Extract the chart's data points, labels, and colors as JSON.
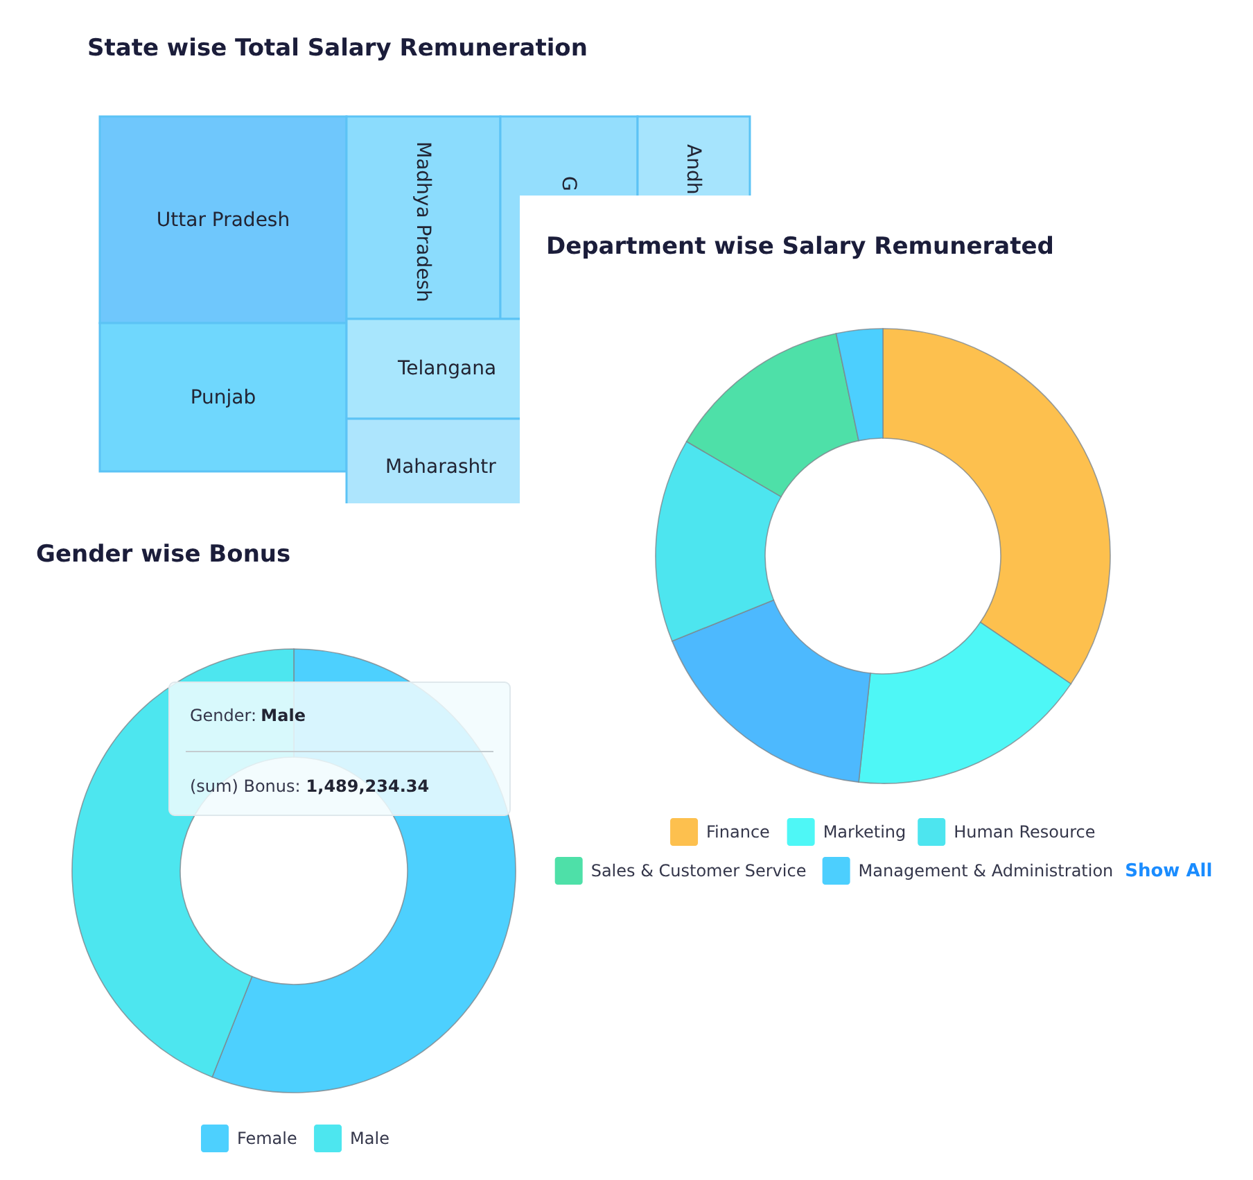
{
  "chart_data": [
    {
      "type": "other",
      "title": "State wise Total Salary Remuneration",
      "categories": [
        "Uttar Pradesh",
        "Madhya Pradesh",
        "G",
        "Andh",
        "Punjab",
        "Telangana",
        "Maharashtr"
      ],
      "colors": [
        "#6fc7fc",
        "#8bdcfd",
        "#94defd",
        "#a6e4fd",
        "#6fd7fd",
        "#a8e6fd",
        "#ade5fd"
      ]
    },
    {
      "type": "donut",
      "title": "Gender wise Bonus",
      "categories": [
        "Female",
        "Male"
      ],
      "values": [
        56,
        44
      ],
      "colors": [
        "#4dd0fe",
        "#4de6ef"
      ],
      "legend": "bottom",
      "annotations": [
        "Gender:",
        "Male",
        "(sum) Bonus:",
        "1,489,234.34"
      ]
    },
    {
      "type": "donut",
      "title": "Department wise Salary Remunerated",
      "categories": [
        "Finance",
        "Marketing",
        null,
        "Human Resource",
        "Sales & Customer Service",
        "Management & Administration"
      ],
      "values": [
        34.5,
        17.2,
        17.2,
        14.5,
        13.3,
        3.3
      ],
      "colors": [
        "#fdc04e",
        "#4ef7f6",
        "#4db9fe",
        "#4de5ef",
        "#4ee0a8",
        "#4ccffe"
      ],
      "legend": "bottom",
      "annotations": [
        "Show All"
      ]
    }
  ]
}
